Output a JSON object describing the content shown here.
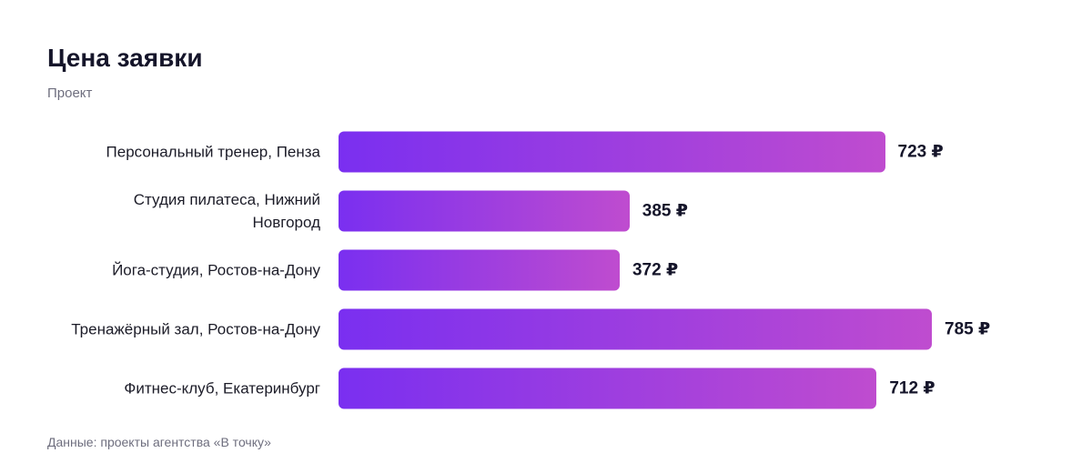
{
  "chart_data": {
    "type": "bar",
    "orientation": "horizontal",
    "title": "Цена заявки",
    "subtitle": "Проект",
    "categories": [
      "Персональный тренер, Пенза",
      "Студия пилатеса, Нижний Новгород",
      "Йога-студия, Ростов-на-Дону",
      "Тренажёрный зал, Ростов-на-Дону",
      "Фитнес-клуб, Екатеринбург"
    ],
    "values": [
      723,
      385,
      372,
      785,
      712
    ],
    "value_labels": [
      "723 ₽",
      "385 ₽",
      "372 ₽",
      "785 ₽",
      "712 ₽"
    ],
    "colors": [
      "#7a2ff0",
      "#bf4ccf"
    ],
    "source": "Данные: проекты агентства «В точку»"
  }
}
